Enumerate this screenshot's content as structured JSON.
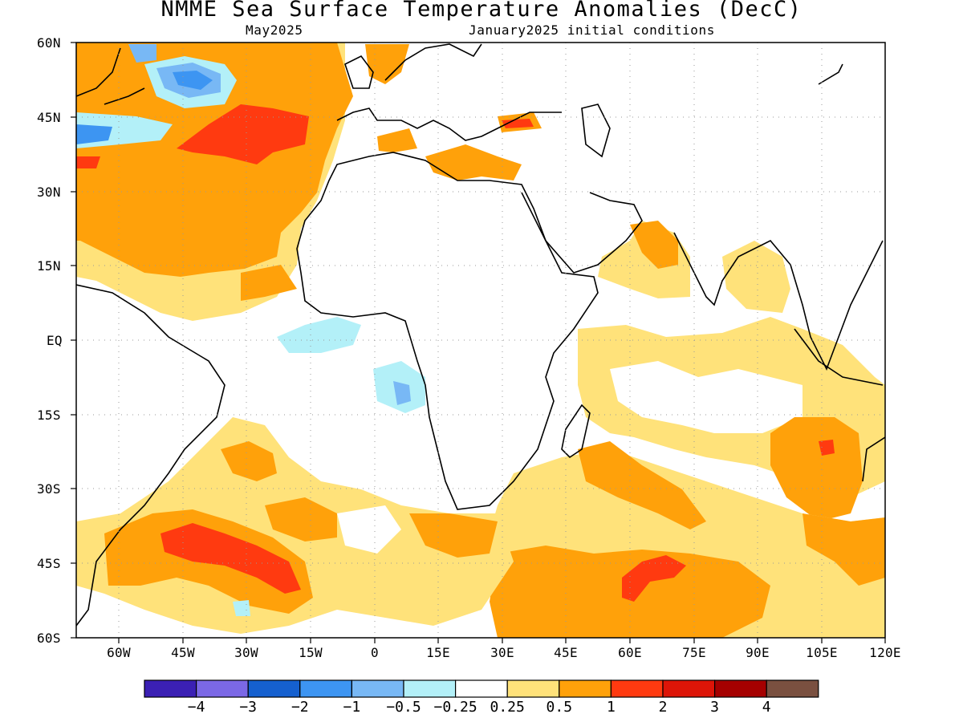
{
  "header": {
    "title": "NMME Sea Surface Temperature Anomalies (DecC)",
    "target_month": "May2025",
    "initial_conditions": "January2025 initial conditions"
  },
  "map": {
    "lat_range": [
      -60,
      60
    ],
    "lon_range": [
      -70,
      120
    ],
    "lat_ticks": [
      "60N",
      "45N",
      "30N",
      "15N",
      "EQ",
      "15S",
      "30S",
      "45S",
      "60S"
    ],
    "lon_ticks": [
      "60W",
      "45W",
      "30W",
      "15W",
      "0",
      "15E",
      "30E",
      "45E",
      "60E",
      "75E",
      "90E",
      "105E",
      "120E"
    ],
    "grid": "dotted"
  },
  "colorbar": {
    "colors": [
      "#3b20b4",
      "#7b68e6",
      "#1560cf",
      "#3d95f2",
      "#78b8f5",
      "#b3f0f8",
      "#ffffff",
      "#ffe27a",
      "#ffa10a",
      "#ff3a10",
      "#dd1508",
      "#a50000",
      "#7a5040"
    ],
    "labels": [
      "−4",
      "−3",
      "−2",
      "−1",
      "−0.5",
      "−0.25",
      "0.25",
      "0.5",
      "1",
      "2",
      "3",
      "4"
    ]
  },
  "anomaly_classes": {
    "weak_warm": "#ffe27a",
    "moderate_warm": "#ffa10a",
    "strong_warm": "#ff3a10",
    "land_fill": "#7a5040",
    "weak_cool": "#b3f0f8",
    "moderate_cool": "#78b8f5",
    "strong_cool": "#3d95f2"
  }
}
